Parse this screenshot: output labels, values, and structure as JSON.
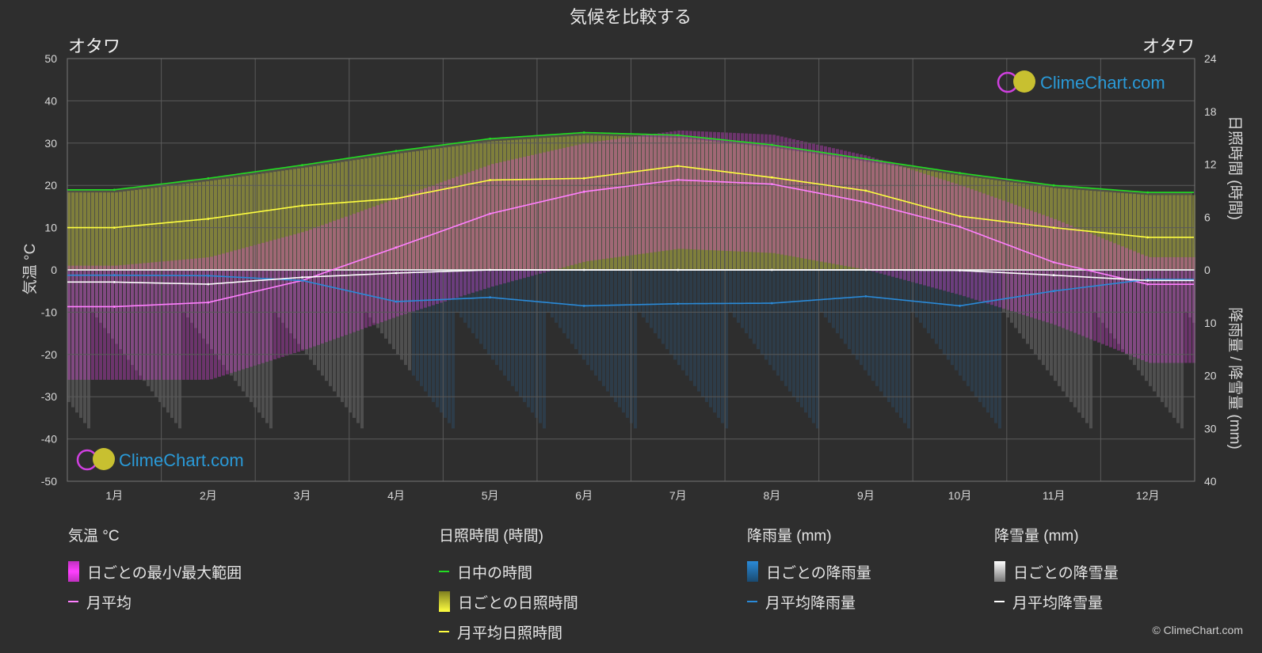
{
  "title": "気候を比較する",
  "location_left": "オタワ",
  "location_right": "オタワ",
  "logo_text": "ClimeChart.com",
  "copyright": "© ClimeChart.com",
  "axes": {
    "left_label": "気温 °C",
    "right_top_label": "日照時間 (時間)",
    "right_bottom_label": "降雨量 / 降雪量 (mm)"
  },
  "legend": {
    "temp": {
      "header": "気温 °C",
      "range": "日ごとの最小/最大範囲",
      "avg": "月平均"
    },
    "sun": {
      "header": "日照時間 (時間)",
      "daylight": "日中の時間",
      "daily": "日ごとの日照時間",
      "avg": "月平均日照時間"
    },
    "rain": {
      "header": "降雨量 (mm)",
      "daily": "日ごとの降雨量",
      "avg": "月平均降雨量"
    },
    "snow": {
      "header": "降雪量 (mm)",
      "daily": "日ごとの降雪量",
      "avg": "月平均降雪量"
    }
  },
  "colors": {
    "background": "#2e2e2e",
    "temp_range": "#e040e0",
    "temp_avg": "#ff80ff",
    "daylight": "#22dd22",
    "sunshine_band": "#b8b830",
    "sunshine_avg": "#ffff40",
    "rain": "#2a8ad8",
    "rain_avg": "#2a8ad8",
    "snow": "#c8c8c8",
    "snow_avg": "#ffffff",
    "logo": "#2a9ad8"
  },
  "chart_data": {
    "type": "line",
    "categories": [
      "1月",
      "2月",
      "3月",
      "4月",
      "5月",
      "6月",
      "7月",
      "8月",
      "9月",
      "10月",
      "11月",
      "12月"
    ],
    "temp_axis": {
      "min": -50,
      "max": 50,
      "ticks": [
        50,
        40,
        30,
        20,
        10,
        0,
        -10,
        -20,
        -30,
        -40,
        -50
      ]
    },
    "sun_axis": {
      "min": 0,
      "max": 24,
      "ticks": [
        24,
        18,
        12,
        6,
        0
      ]
    },
    "precip_axis": {
      "min": 0,
      "max": 40,
      "ticks": [
        0,
        10,
        20,
        30,
        40
      ]
    },
    "series": [
      {
        "name": "日中の時間",
        "axis": "sun",
        "values": [
          9.1,
          10.4,
          11.9,
          13.5,
          14.9,
          15.6,
          15.3,
          14.2,
          12.6,
          11.0,
          9.6,
          8.8
        ]
      },
      {
        "name": "月平均日照時間",
        "axis": "sun",
        "values": [
          4.8,
          5.8,
          7.3,
          8.1,
          10.2,
          10.4,
          11.8,
          10.5,
          9.0,
          6.1,
          4.8,
          3.7
        ]
      },
      {
        "name": "月平均",
        "axis": "temp",
        "values": [
          -8.7,
          -7.7,
          -2.5,
          5.3,
          13.3,
          18.5,
          21.3,
          20.3,
          16.0,
          10.2,
          1.8,
          -3.4
        ]
      },
      {
        "name": "月平均降雨量",
        "axis": "precip",
        "values": [
          1.0,
          1.1,
          2.0,
          6.0,
          5.2,
          6.8,
          6.4,
          6.3,
          5.0,
          6.8,
          4.0,
          1.8
        ]
      },
      {
        "name": "月平均降雪量",
        "axis": "precip",
        "values": [
          2.3,
          2.7,
          1.4,
          0.6,
          0.0,
          0.0,
          0.0,
          0.0,
          0.0,
          0.1,
          1.0,
          2.0
        ]
      }
    ],
    "temp_daily_range": {
      "min": [
        -16,
        -16,
        -9,
        -1,
        6,
        12,
        15,
        14,
        10,
        4,
        -3,
        -12
      ],
      "max": [
        -5,
        -3,
        3,
        11,
        19,
        24,
        27,
        26,
        21,
        14,
        6,
        -3
      ]
    },
    "grid": true
  }
}
